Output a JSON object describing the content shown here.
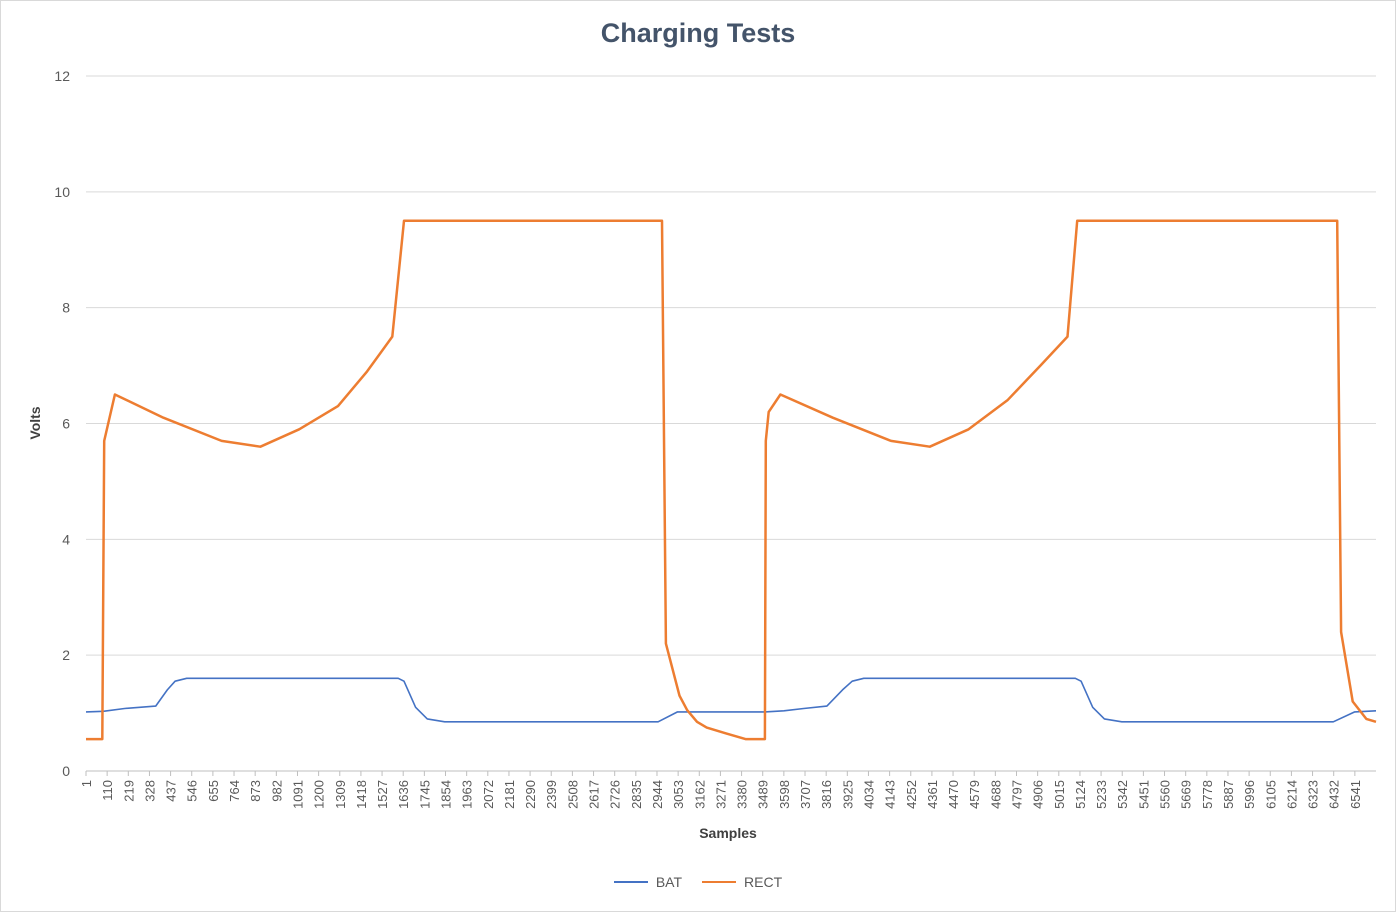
{
  "chart_data": {
    "type": "line",
    "title": "Charging Tests",
    "xlabel": "Samples",
    "ylabel": "Volts",
    "ylim": [
      0,
      12
    ],
    "y_ticks": [
      0,
      2,
      4,
      6,
      8,
      10,
      12
    ],
    "xlim": [
      1,
      6650
    ],
    "x_ticks": [
      1,
      110,
      219,
      328,
      437,
      546,
      655,
      764,
      873,
      982,
      1091,
      1200,
      1309,
      1418,
      1527,
      1636,
      1745,
      1854,
      1963,
      2072,
      2181,
      2290,
      2399,
      2508,
      2617,
      2726,
      2835,
      2944,
      3053,
      3162,
      3271,
      3380,
      3489,
      3598,
      3707,
      3816,
      3925,
      4034,
      4143,
      4252,
      4361,
      4470,
      4579,
      4688,
      4797,
      4906,
      5015,
      5124,
      5233,
      5342,
      5451,
      5560,
      5669,
      5778,
      5887,
      5996,
      6105,
      6214,
      6323,
      6432,
      6541
    ],
    "grid": "horizontal",
    "legend_position": "bottom",
    "series": [
      {
        "name": "BAT",
        "color": "#4472c4",
        "x": [
          1,
          90,
          200,
          360,
          420,
          460,
          520,
          1610,
          1640,
          1700,
          1760,
          1850,
          2950,
          3050,
          3500,
          3598,
          3700,
          3820,
          3900,
          3950,
          4010,
          5100,
          5130,
          5190,
          5250,
          5340,
          6430,
          6540,
          6650
        ],
        "values": [
          1.02,
          1.03,
          1.08,
          1.12,
          1.4,
          1.55,
          1.6,
          1.6,
          1.55,
          1.1,
          0.9,
          0.85,
          0.85,
          1.02,
          1.02,
          1.04,
          1.08,
          1.12,
          1.4,
          1.55,
          1.6,
          1.6,
          1.55,
          1.1,
          0.9,
          0.85,
          0.85,
          1.02,
          1.04
        ]
      },
      {
        "name": "RECT",
        "color": "#ed7d31",
        "x": [
          1,
          85,
          95,
          150,
          400,
          700,
          900,
          1100,
          1300,
          1450,
          1580,
          1640,
          1650,
          2970,
          2990,
          3060,
          3100,
          3150,
          3200,
          3300,
          3400,
          3500,
          3505,
          3520,
          3580,
          3850,
          4150,
          4350,
          4550,
          4750,
          4920,
          5060,
          5110,
          5120,
          6450,
          6470,
          6530,
          6600,
          6650
        ],
        "values": [
          0.55,
          0.55,
          5.7,
          6.5,
          6.1,
          5.7,
          5.6,
          5.9,
          6.3,
          6.9,
          7.5,
          9.5,
          9.5,
          9.5,
          2.2,
          1.3,
          1.05,
          0.85,
          0.75,
          0.65,
          0.55,
          0.55,
          5.7,
          6.2,
          6.5,
          6.1,
          5.7,
          5.6,
          5.9,
          6.4,
          7.0,
          7.5,
          9.5,
          9.5,
          9.5,
          2.4,
          1.2,
          0.9,
          0.85
        ]
      }
    ]
  }
}
